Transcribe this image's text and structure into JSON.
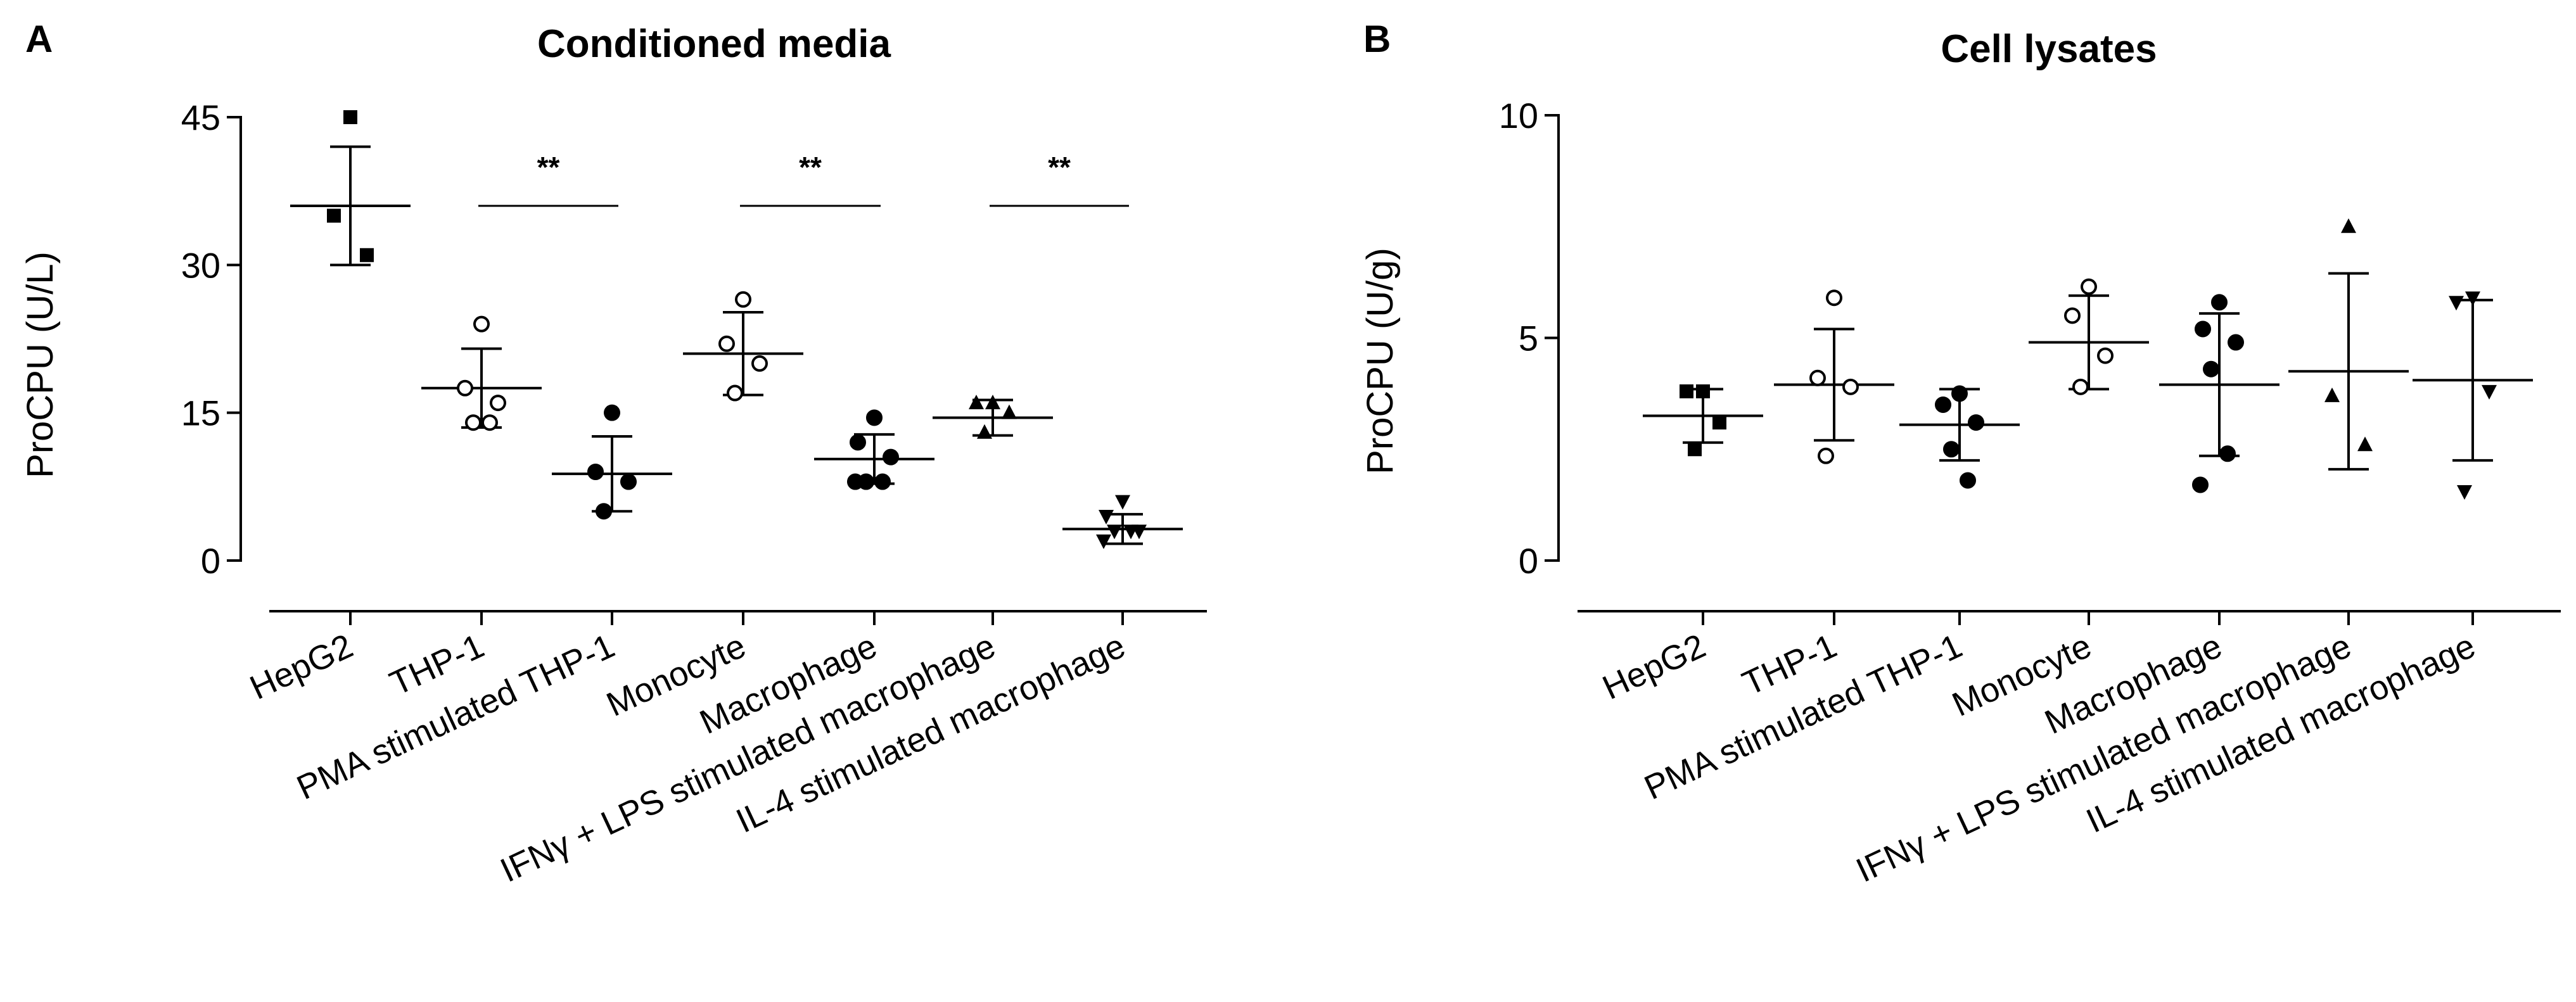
{
  "panels": [
    {
      "letter": "A",
      "chart_data": {
        "type": "scatter",
        "title": "Conditioned media",
        "ylabel": "ProCPU (U/L)",
        "xlabel": "",
        "ylim": [
          0,
          45
        ],
        "yticks": [
          0,
          15,
          30,
          45
        ],
        "categories": [
          "HepG2",
          "THP-1",
          "PMA stimulated THP-1",
          "Monocyte",
          "Macrophage",
          "IFNγ + LPS stimulated macrophage",
          "IL-4 stimulated macrophage"
        ],
        "series": [
          {
            "marker": "square",
            "fill": "filled",
            "mean": 36,
            "sd": 6,
            "points": [
              45,
              35,
              31
            ]
          },
          {
            "marker": "circle",
            "fill": "open",
            "mean": 17.5,
            "sd": 4,
            "points": [
              24,
              17.5,
              16,
              14,
              14
            ]
          },
          {
            "marker": "circle",
            "fill": "filled",
            "mean": 8.8,
            "sd": 3.8,
            "points": [
              15,
              9,
              8,
              5
            ]
          },
          {
            "marker": "circle",
            "fill": "open",
            "mean": 21,
            "sd": 4.2,
            "points": [
              26.5,
              22,
              20,
              17
            ]
          },
          {
            "marker": "circle",
            "fill": "filled",
            "mean": 10.3,
            "sd": 2.5,
            "points": [
              14.5,
              12,
              10.5,
              8,
              8,
              8
            ]
          },
          {
            "marker": "triangle-up",
            "fill": "filled",
            "mean": 14.5,
            "sd": 1.8,
            "points": [
              16,
              16,
              15,
              13
            ]
          },
          {
            "marker": "triangle-down",
            "fill": "filled",
            "mean": 3.2,
            "sd": 1.5,
            "points": [
              6,
              4.5,
              3,
              3,
              3,
              2
            ]
          }
        ],
        "significance": [
          {
            "from": 1,
            "to": 2,
            "y": 36,
            "label": "**"
          },
          {
            "from": 3,
            "to": 4,
            "y": 36,
            "label": "**"
          },
          {
            "from": 5,
            "to": 6,
            "y": 36,
            "label": "**"
          }
        ]
      }
    },
    {
      "letter": "B",
      "chart_data": {
        "type": "scatter",
        "title": "Cell lysates",
        "ylabel": "ProCPU (U/g)",
        "xlabel": "",
        "ylim": [
          0,
          10
        ],
        "yticks": [
          0,
          5,
          10
        ],
        "categories": [
          "HepG2",
          "THP-1",
          "PMA stimulated THP-1",
          "Monocyte",
          "Macrophage",
          "IFNγ + LPS stimulated macrophage",
          "IL-4 stimulated macrophage"
        ],
        "series": [
          {
            "marker": "square",
            "fill": "filled",
            "mean": 3.25,
            "sd": 0.6,
            "points": [
              3.8,
              3.8,
              3.1,
              2.5
            ]
          },
          {
            "marker": "circle",
            "fill": "open",
            "mean": 3.95,
            "sd": 1.25,
            "points": [
              5.9,
              4.1,
              3.9,
              2.35
            ]
          },
          {
            "marker": "circle",
            "fill": "filled",
            "mean": 3.05,
            "sd": 0.8,
            "points": [
              3.75,
              3.5,
              3.1,
              2.5,
              1.8
            ]
          },
          {
            "marker": "circle",
            "fill": "open",
            "mean": 4.9,
            "sd": 1.05,
            "points": [
              6.15,
              5.5,
              4.6,
              3.9
            ]
          },
          {
            "marker": "circle",
            "fill": "filled",
            "mean": 3.95,
            "sd": 1.6,
            "points": [
              5.8,
              5.2,
              4.9,
              4.3,
              2.4,
              1.7
            ]
          },
          {
            "marker": "triangle-up",
            "fill": "filled",
            "mean": 4.25,
            "sd": 2.2,
            "points": [
              7.5,
              3.7,
              2.6
            ]
          },
          {
            "marker": "triangle-down",
            "fill": "filled",
            "mean": 4.05,
            "sd": 1.8,
            "points": [
              5.9,
              5.8,
              3.8,
              1.55
            ]
          }
        ],
        "significance": []
      }
    }
  ]
}
